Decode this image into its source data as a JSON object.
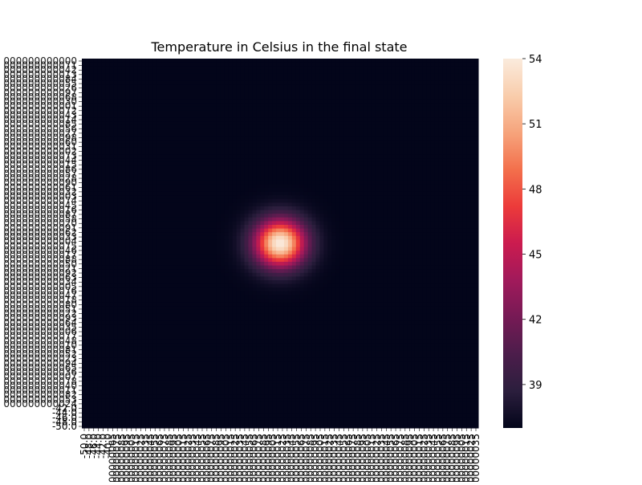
{
  "chart_data": {
    "type": "heatmap",
    "title": "Temperature in Celsius in the final state",
    "xlabel": "",
    "ylabel": "",
    "grid": false,
    "x_range": [
      -50.0,
      50.0
    ],
    "y_range": [
      50.0,
      -50.0
    ],
    "x_tick_labels_sample": [
      "-50.0",
      "-48.0",
      "-46.0",
      "-44.0",
      "-42.0",
      "-40.0"
    ],
    "y_tick_labels_sample": [
      "-42.0",
      "-44.0",
      "-46.0",
      "-48.0",
      "-50.0"
    ],
    "hot_spot": {
      "x": 0.0,
      "y": 0.0,
      "peak": 54.0,
      "sigma": 4.5
    },
    "background": 37.0,
    "colorbar": {
      "min": 37.0,
      "max": 54.0,
      "ticks": [
        39,
        42,
        45,
        48,
        51,
        54
      ],
      "colormap": "rocket",
      "stops": [
        "#03051a",
        "#2b1e3d",
        "#4c1d4b",
        "#761a55",
        "#a11a5b",
        "#cb1b4f",
        "#ec3b3a",
        "#f3704c",
        "#f6a47c",
        "#f9cdac",
        "#faebdd"
      ]
    }
  }
}
